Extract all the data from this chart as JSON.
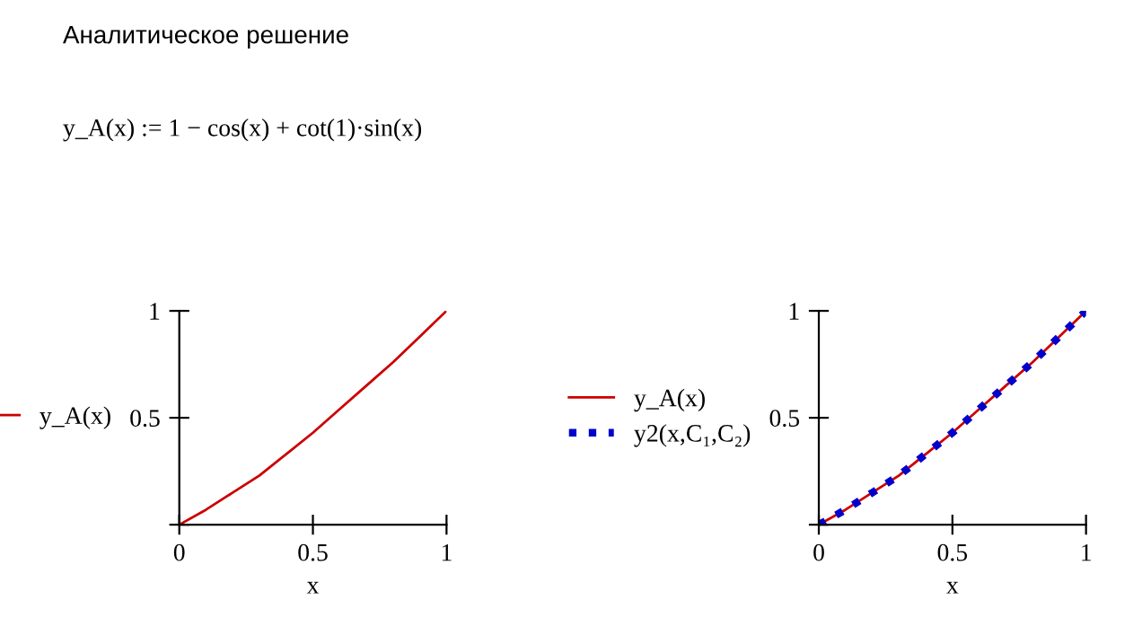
{
  "chart_data": [
    {
      "type": "line",
      "title": "Аналитическое решение",
      "annotations": [
        "y_A(x) := 1 − cos(x) + cot(1)·sin(x)"
      ],
      "xlabel": "x",
      "x": [
        0,
        0.1,
        0.2,
        0.3,
        0.4,
        0.5,
        0.6,
        0.7,
        0.8,
        0.9,
        1
      ],
      "xlim": [
        0,
        1
      ],
      "xticks": [
        0,
        0.5,
        1
      ],
      "ylim": [
        0,
        1
      ],
      "yticks": [
        {
          "value": 0,
          "label": null
        },
        0.5,
        1
      ],
      "grid": false,
      "legend": "left",
      "series": [
        {
          "name": "y_A(x)",
          "color": "#cc0000",
          "line_style": "solid",
          "values": [
            0,
            0.07,
            0.15,
            0.23,
            0.33,
            0.43,
            0.54,
            0.65,
            0.76,
            0.88,
            1
          ]
        }
      ]
    },
    {
      "type": "line",
      "xlabel": "x",
      "x": [
        0,
        0.1,
        0.2,
        0.3,
        0.4,
        0.5,
        0.6,
        0.7,
        0.8,
        0.9,
        1
      ],
      "xlim": [
        0,
        1
      ],
      "xticks": [
        0,
        0.5,
        1
      ],
      "ylim": [
        0,
        1
      ],
      "yticks": [
        {
          "value": 0,
          "label": null
        },
        0.5,
        1
      ],
      "grid": false,
      "legend": "left",
      "series": [
        {
          "name": "y_A(x)",
          "color": "#cc0000",
          "line_style": "solid",
          "values": [
            0,
            0.07,
            0.15,
            0.23,
            0.33,
            0.43,
            0.54,
            0.65,
            0.76,
            0.88,
            1
          ]
        },
        {
          "name": "y2(x,C₁,C₂)",
          "color": "#0000cc",
          "line_style": "dotted",
          "values": [
            0,
            0.07,
            0.15,
            0.23,
            0.33,
            0.43,
            0.54,
            0.65,
            0.76,
            0.88,
            1
          ]
        }
      ]
    }
  ]
}
